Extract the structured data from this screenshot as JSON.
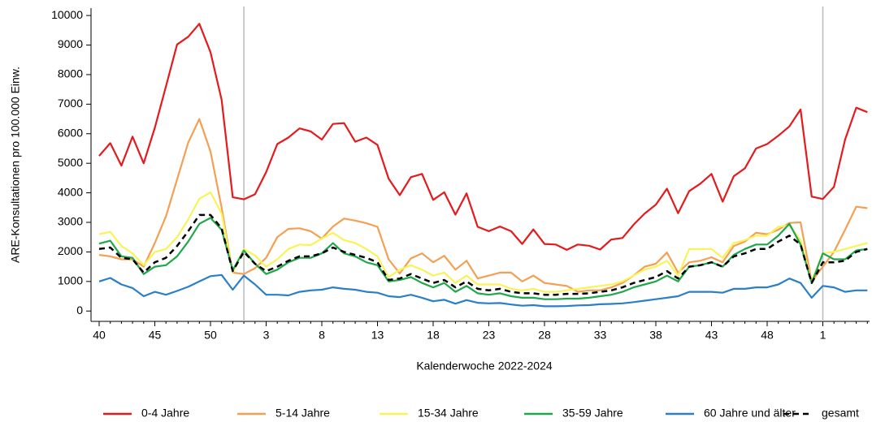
{
  "chart_data": {
    "type": "line",
    "x_label": "Kalenderwoche 2022-2024",
    "y_label": "ARE-Konsultationen pro 100.000 Einw.",
    "categories": [
      "40",
      null,
      null,
      null,
      null,
      "45",
      null,
      null,
      null,
      null,
      "50",
      null,
      null,
      null,
      null,
      "3",
      null,
      null,
      null,
      null,
      "8",
      null,
      null,
      null,
      null,
      "13",
      null,
      null,
      null,
      null,
      "18",
      null,
      null,
      null,
      null,
      "23",
      null,
      null,
      null,
      null,
      "28",
      null,
      null,
      null,
      null,
      "33",
      null,
      null,
      null,
      null,
      "38",
      null,
      null,
      null,
      null,
      "43",
      null,
      null,
      null,
      null,
      "48",
      null,
      null,
      null,
      null,
      "1",
      null,
      null,
      null,
      null
    ],
    "vlines": [
      13,
      65
    ],
    "ylim": [
      -350,
      10250
    ],
    "yticks": [
      0,
      1000,
      2000,
      3000,
      4000,
      5000,
      6000,
      7000,
      8000,
      9000,
      10000
    ],
    "series": [
      {
        "name": "0-4 Jahre",
        "color": "#e41a1c",
        "values": [
          5250,
          5680,
          4920,
          5900,
          5000,
          6200,
          7600,
          9020,
          9280,
          9720,
          8760,
          7150,
          3850,
          3780,
          3950,
          4700,
          5650,
          5870,
          6180,
          6080,
          5800,
          6330,
          6360,
          5730,
          5870,
          5620,
          4480,
          3920,
          4530,
          4640,
          3760,
          4020,
          3260,
          3980,
          2850,
          2700,
          2860,
          2700,
          2270,
          2760,
          2270,
          2250,
          2070,
          2250,
          2210,
          2080,
          2420,
          2470,
          2920,
          3300,
          3600,
          4140,
          3310,
          4060,
          4310,
          4640,
          3700,
          4560,
          4830,
          5500,
          5650,
          5930,
          6250,
          6820,
          3870,
          3790,
          4200,
          5800,
          6880,
          6730
        ]
      },
      {
        "name": "5-14 Jahre",
        "color": "#f4a053",
        "values": [
          1900,
          1850,
          1750,
          1750,
          1500,
          2300,
          3200,
          4450,
          5700,
          6500,
          5400,
          3500,
          1300,
          1250,
          1450,
          1800,
          2500,
          2780,
          2800,
          2700,
          2450,
          2860,
          3130,
          3060,
          2970,
          2850,
          1750,
          1270,
          1780,
          1950,
          1650,
          1870,
          1400,
          1700,
          1100,
          1200,
          1300,
          1300,
          1000,
          1200,
          950,
          900,
          850,
          650,
          700,
          700,
          800,
          950,
          1200,
          1500,
          1600,
          1980,
          1300,
          1650,
          1700,
          1820,
          1650,
          2200,
          2350,
          2650,
          2600,
          2750,
          2980,
          3000,
          1000,
          1500,
          2000,
          2750,
          3530,
          3480
        ]
      },
      {
        "name": "15-34 Jahre",
        "color": "#f8f458",
        "values": [
          2600,
          2680,
          2200,
          1950,
          1550,
          2000,
          2100,
          2500,
          3100,
          3800,
          4020,
          3300,
          1300,
          2100,
          1880,
          1500,
          1750,
          2100,
          2250,
          2230,
          2450,
          2650,
          2400,
          2300,
          2100,
          1850,
          1150,
          1400,
          1550,
          1400,
          1200,
          1300,
          950,
          1200,
          900,
          900,
          900,
          750,
          700,
          750,
          650,
          650,
          700,
          750,
          800,
          850,
          900,
          1000,
          1200,
          1400,
          1500,
          1700,
          1200,
          2100,
          2100,
          2100,
          1800,
          2300,
          2400,
          2550,
          2550,
          2850,
          2900,
          2400,
          1000,
          1950,
          2000,
          2100,
          2200,
          2300
        ]
      },
      {
        "name": "35-59 Jahre",
        "color": "#1fa84a",
        "values": [
          2280,
          2380,
          1850,
          1800,
          1250,
          1500,
          1550,
          1850,
          2350,
          2950,
          3150,
          2750,
          1380,
          2050,
          1600,
          1250,
          1400,
          1650,
          1800,
          1800,
          1950,
          2300,
          1950,
          1850,
          1650,
          1550,
          1000,
          1050,
          1150,
          950,
          800,
          950,
          650,
          850,
          600,
          550,
          600,
          500,
          450,
          450,
          400,
          400,
          420,
          420,
          450,
          500,
          550,
          650,
          800,
          900,
          1000,
          1200,
          1000,
          1500,
          1550,
          1650,
          1500,
          1900,
          2100,
          2250,
          2250,
          2550,
          2950,
          2250,
          950,
          1950,
          1750,
          1750,
          2050,
          2100
        ]
      },
      {
        "name": "60 Jahre und älter",
        "color": "#2a7fc7",
        "values": [
          1000,
          1120,
          900,
          780,
          500,
          650,
          550,
          680,
          820,
          1000,
          1180,
          1220,
          720,
          1200,
          900,
          550,
          550,
          530,
          650,
          700,
          720,
          800,
          750,
          720,
          650,
          620,
          500,
          470,
          550,
          450,
          330,
          380,
          250,
          370,
          280,
          260,
          270,
          220,
          180,
          200,
          160,
          160,
          170,
          190,
          200,
          230,
          240,
          260,
          300,
          350,
          400,
          450,
          500,
          650,
          650,
          650,
          620,
          750,
          750,
          800,
          800,
          900,
          1100,
          950,
          450,
          850,
          800,
          650,
          700,
          700
        ]
      },
      {
        "name": "gesamt",
        "color": "#000000",
        "dashed": true,
        "values": [
          2100,
          2150,
          1800,
          1750,
          1300,
          1650,
          1800,
          2200,
          2700,
          3250,
          3250,
          2800,
          1350,
          2000,
          1600,
          1350,
          1500,
          1700,
          1850,
          1850,
          1950,
          2150,
          2000,
          1900,
          1800,
          1650,
          1050,
          1100,
          1250,
          1100,
          950,
          1050,
          800,
          1000,
          750,
          700,
          750,
          650,
          600,
          600,
          550,
          550,
          580,
          580,
          600,
          650,
          700,
          800,
          950,
          1050,
          1150,
          1350,
          1100,
          1500,
          1550,
          1650,
          1500,
          1850,
          1950,
          2100,
          2100,
          2350,
          2550,
          2250,
          950,
          1650,
          1650,
          1700,
          2000,
          2100
        ]
      }
    ]
  }
}
